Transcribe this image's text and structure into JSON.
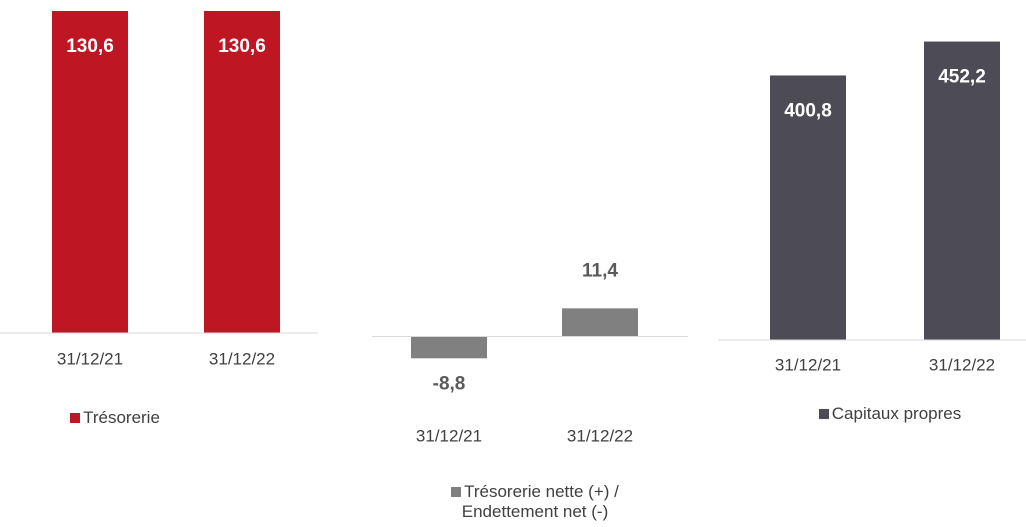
{
  "chart_data": [
    {
      "type": "bar",
      "categories": [
        "31/12/21",
        "31/12/22"
      ],
      "series": [
        {
          "name": "Trésorerie",
          "color": "#be1622",
          "values": [
            130.6,
            130.6
          ],
          "value_labels": [
            "130,6",
            "130,6"
          ]
        }
      ],
      "ylim": [
        0,
        131
      ],
      "value_label_position": "inside"
    },
    {
      "type": "bar",
      "categories": [
        "31/12/21",
        "31/12/22"
      ],
      "series": [
        {
          "name": "Trésorerie nette (+) / Endettement net (-)",
          "color": "#808080",
          "values": [
            -8.8,
            11.4
          ],
          "value_labels": [
            "-8,8",
            "11,4"
          ]
        }
      ],
      "ylim": [
        -20,
        35
      ],
      "value_label_position": "outside"
    },
    {
      "type": "bar",
      "categories": [
        "31/12/21",
        "31/12/22"
      ],
      "series": [
        {
          "name": "Capitaux propres",
          "color": "#4d4b55",
          "values": [
            400.8,
            452.2
          ],
          "value_labels": [
            "400,8",
            "452,2"
          ]
        }
      ],
      "ylim": [
        0,
        500
      ],
      "value_label_position": "inside"
    }
  ]
}
